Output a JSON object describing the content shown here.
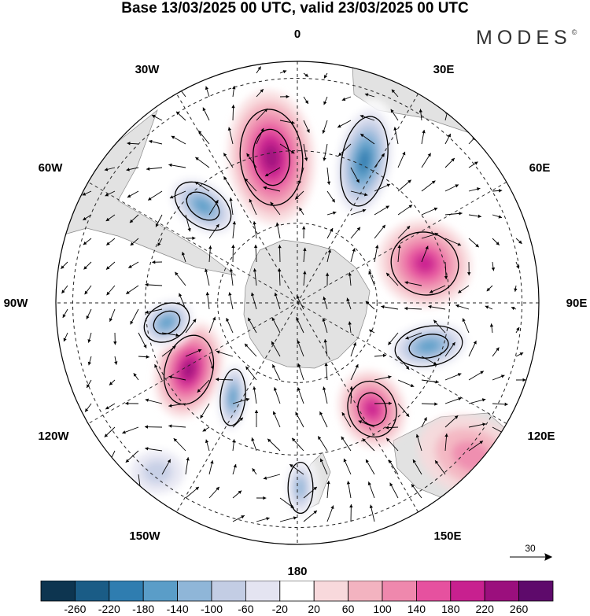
{
  "title": "Base 13/03/2025 00 UTC, valid 23/03/2025 00 UTC",
  "brand": {
    "name": "MODES",
    "mark": "©"
  },
  "lon_labels": [
    {
      "key": "0",
      "text": "0"
    },
    {
      "key": "30E",
      "text": "30E"
    },
    {
      "key": "60E",
      "text": "60E"
    },
    {
      "key": "90E",
      "text": "90E"
    },
    {
      "key": "120E",
      "text": "120E"
    },
    {
      "key": "150E",
      "text": "150E"
    },
    {
      "key": "180",
      "text": "180"
    },
    {
      "key": "150W",
      "text": "150W"
    },
    {
      "key": "120W",
      "text": "120W"
    },
    {
      "key": "90W",
      "text": "90W"
    },
    {
      "key": "60W",
      "text": "60W"
    },
    {
      "key": "30W",
      "text": "30W"
    }
  ],
  "reference_vector": {
    "value": "30"
  },
  "colorbar": {
    "labels": [
      "-260",
      "-220",
      "-180",
      "-140",
      "-100",
      "-60",
      "-20",
      "20",
      "60",
      "100",
      "140",
      "180",
      "220",
      "260"
    ],
    "colors": [
      "#0d3550",
      "#1a5c86",
      "#2f7db0",
      "#5a9dc8",
      "#8fb6d8",
      "#c3cde4",
      "#e4e4f1",
      "#ffffff",
      "#f8d9dc",
      "#f3b3c0",
      "#ef88ad",
      "#e6519f",
      "#c8208f",
      "#9b0f7d",
      "#5e0a6b"
    ]
  },
  "anomalies": [
    {
      "sign": "pos",
      "peak": 180
    },
    {
      "sign": "neg",
      "peak": -180
    },
    {
      "sign": "neg",
      "peak": -140
    },
    {
      "sign": "pos",
      "peak": 140
    },
    {
      "sign": "neg",
      "peak": -140
    },
    {
      "sign": "pos",
      "peak": 180
    },
    {
      "sign": "neg",
      "peak": -140
    },
    {
      "sign": "neg",
      "peak": -140
    },
    {
      "sign": "pos",
      "peak": 140
    },
    {
      "sign": "neg",
      "peak": -100
    },
    {
      "sign": "pos",
      "peak": 60
    },
    {
      "sign": "neg",
      "peak": -60
    }
  ]
}
